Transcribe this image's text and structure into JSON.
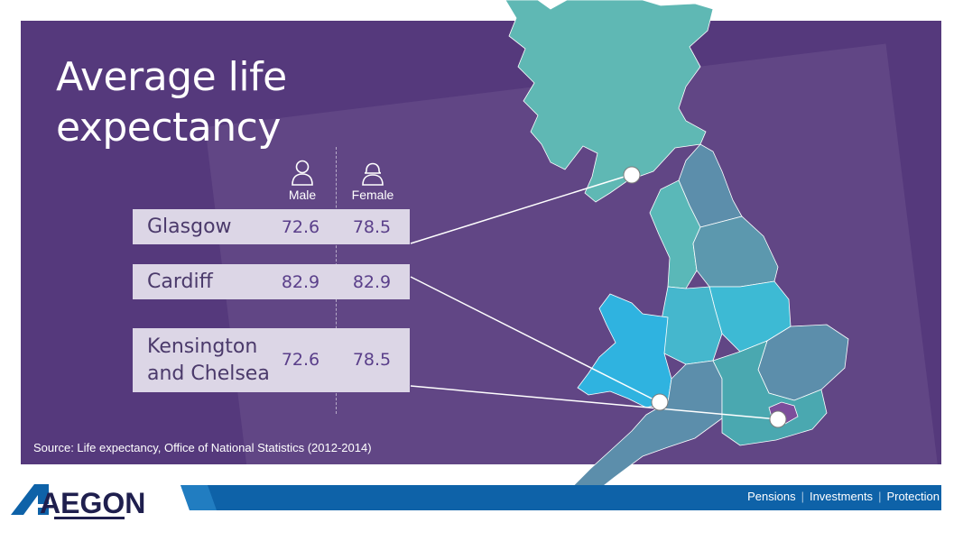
{
  "title": "Average life expectancy",
  "columns": {
    "male": "Male",
    "female": "Female"
  },
  "rows": [
    {
      "city": "Glasgow",
      "male": "72.6",
      "female": "78.5"
    },
    {
      "city": "Cardiff",
      "male": "82.9",
      "female": "82.9"
    },
    {
      "city_line1": "Kensington",
      "city_line2": "and Chelsea",
      "male": "72.6",
      "female": "78.5"
    }
  ],
  "source": "Source: Life expectancy, Office of National Statistics (2012-2014)",
  "brand": {
    "logo_text": "AEGON",
    "tagline": [
      "Pensions",
      "Investments",
      "Protection"
    ]
  },
  "colors": {
    "background": "#55397c",
    "row_box": "#dcd6e6",
    "brand_blue": "#0e62a8",
    "map_teal": "#5fb8b4",
    "map_blue": "#2fb3d8",
    "map_slate": "#5c8eab"
  },
  "icons": {
    "male": "person-outline-icon",
    "female": "person-female-outline-icon",
    "pin": "map-marker-circle-icon"
  }
}
